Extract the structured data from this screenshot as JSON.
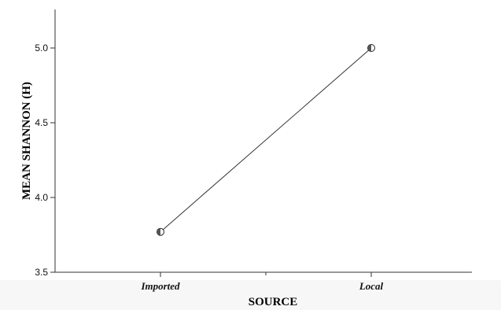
{
  "chart_data": {
    "type": "line",
    "categories": [
      "Imported",
      "Local"
    ],
    "series": [
      {
        "values": [
          3.77,
          5.0
        ]
      }
    ],
    "xlabel": "SOURCE",
    "ylabel": "MEAN SHANNON (H)",
    "ylim": [
      3.5,
      5.25
    ],
    "yticks": [
      "3.5",
      "4.0",
      "4.5",
      "5.0"
    ],
    "ytick_values": [
      3.5,
      4.0,
      4.5,
      5.0
    ],
    "grid": false,
    "marker": "half-filled-circle",
    "colors": {
      "line": "#333333",
      "marker_fill": "#555555",
      "marker_stroke": "#222222"
    }
  }
}
